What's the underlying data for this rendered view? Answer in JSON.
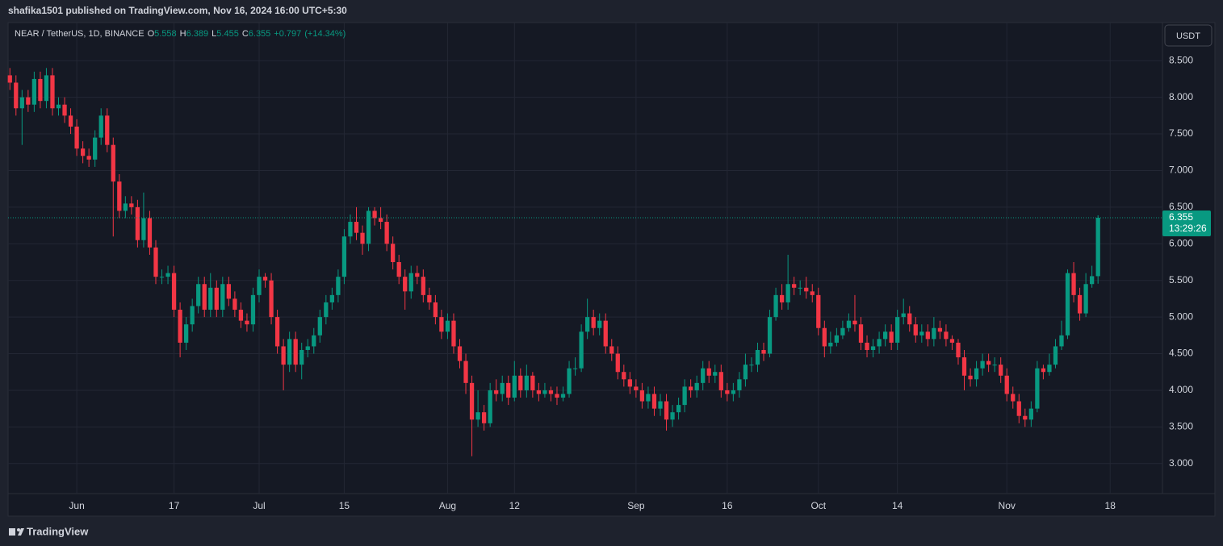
{
  "published": "shafika1501 published on TradingView.com, Nov 16, 2024 16:00 UTC+5:30",
  "footer": "TradingView",
  "currency": "USDT",
  "countdown": "13:29:26",
  "chart_data": {
    "type": "candlestick",
    "title": "NEAR / TetherUS, 1D, BINANCE",
    "ohlc_labels": [
      "O",
      "H",
      "L",
      "C"
    ],
    "change_label": "+0.797",
    "change_pct_label": "(+14.34%)",
    "up_color": "#089981",
    "down_color": "#f23645",
    "grid": true,
    "open": [
      8.3,
      8.2,
      7.85,
      8.0,
      7.9,
      8.25,
      7.95,
      8.3,
      7.85,
      7.9,
      7.75,
      7.6,
      7.3,
      7.2,
      7.15,
      7.45,
      7.75,
      7.35,
      6.85,
      6.45,
      6.55,
      6.5,
      6.05,
      6.35,
      5.95,
      5.55,
      5.55,
      5.6,
      5.1,
      4.65,
      4.9,
      5.15,
      5.45,
      5.1,
      5.4,
      5.1,
      5.45,
      5.25,
      5.1,
      4.95,
      4.9,
      5.3,
      5.55,
      5.5,
      5.0,
      4.6,
      4.35,
      4.7,
      4.35,
      4.55,
      4.6,
      4.75,
      5.0,
      5.2,
      5.3,
      5.55,
      6.1,
      6.3,
      6.15,
      6.0,
      6.45,
      6.35,
      6.3,
      6.0,
      5.75,
      5.55,
      5.35,
      5.6,
      5.55,
      5.3,
      5.2,
      5.0,
      4.8,
      4.95,
      4.6,
      4.4,
      4.1,
      3.6,
      3.7,
      3.55,
      4.0,
      3.95,
      4.1,
      3.9,
      4.2,
      4.0,
      4.2,
      4.0,
      3.95,
      4.0,
      3.95,
      3.9,
      3.95,
      4.3,
      4.3,
      4.8,
      5.0,
      4.85,
      4.95,
      4.6,
      4.5,
      4.25,
      4.15,
      4.05,
      4.0,
      3.85,
      3.95,
      3.75,
      3.85,
      3.6,
      3.7,
      3.8,
      4.05,
      4.0,
      4.1,
      4.3,
      4.2,
      4.25,
      4.0,
      3.95,
      4.0,
      4.15,
      4.35,
      4.35,
      4.55,
      4.5,
      5.0,
      5.3,
      5.2,
      5.45,
      5.4,
      5.4,
      5.35,
      5.3,
      4.85,
      4.6,
      4.65,
      4.75,
      4.85,
      4.95,
      4.9,
      4.65,
      4.55,
      4.6,
      4.7,
      4.8,
      4.65,
      5.0,
      5.05,
      4.9,
      4.75,
      4.8,
      4.7,
      4.85,
      4.8,
      4.7,
      4.65,
      4.45,
      4.2,
      4.15,
      4.3,
      4.4,
      4.35,
      4.35,
      4.2,
      3.95,
      3.85,
      3.65,
      3.6,
      3.75,
      4.3,
      4.25,
      4.35,
      4.6,
      4.75,
      5.6,
      5.3,
      5.05,
      5.45,
      5.558
    ],
    "high": [
      8.4,
      8.3,
      8.1,
      8.1,
      8.35,
      8.35,
      8.4,
      8.4,
      8.0,
      8.0,
      7.85,
      7.7,
      7.4,
      7.3,
      7.55,
      7.85,
      7.85,
      7.45,
      6.95,
      6.65,
      6.65,
      6.6,
      6.7,
      6.45,
      6.05,
      5.65,
      5.7,
      5.7,
      5.2,
      5.0,
      5.25,
      5.55,
      5.55,
      5.6,
      5.5,
      5.55,
      5.55,
      5.35,
      5.2,
      5.05,
      5.4,
      5.65,
      5.6,
      5.6,
      5.1,
      4.7,
      4.8,
      4.8,
      4.65,
      4.7,
      4.85,
      5.1,
      5.3,
      5.4,
      5.65,
      6.2,
      6.4,
      6.5,
      6.25,
      6.5,
      6.5,
      6.5,
      6.4,
      6.1,
      5.85,
      5.65,
      5.7,
      5.7,
      5.65,
      5.4,
      5.3,
      5.1,
      5.05,
      5.05,
      4.7,
      4.5,
      4.2,
      4.0,
      3.8,
      4.1,
      4.15,
      4.2,
      4.2,
      4.4,
      4.3,
      4.35,
      4.25,
      4.1,
      4.1,
      4.05,
      4.05,
      4.05,
      4.4,
      4.45,
      4.9,
      5.25,
      5.1,
      5.05,
      5.05,
      4.7,
      4.6,
      4.35,
      4.25,
      4.15,
      4.1,
      4.05,
      4.05,
      3.95,
      3.95,
      3.8,
      3.9,
      4.15,
      4.15,
      4.2,
      4.4,
      4.4,
      4.35,
      4.35,
      4.1,
      4.1,
      4.25,
      4.5,
      4.45,
      4.65,
      4.65,
      5.1,
      5.4,
      5.45,
      5.85,
      5.55,
      5.5,
      5.55,
      5.45,
      5.4,
      4.95,
      4.8,
      4.85,
      4.95,
      5.05,
      5.3,
      5.0,
      4.75,
      4.7,
      4.8,
      4.9,
      4.9,
      5.1,
      5.25,
      5.15,
      5.0,
      4.9,
      4.9,
      5.0,
      4.95,
      4.9,
      4.75,
      4.7,
      4.55,
      4.3,
      4.4,
      4.5,
      4.5,
      4.45,
      4.45,
      4.3,
      4.05,
      3.95,
      3.75,
      3.85,
      4.4,
      4.35,
      4.5,
      4.7,
      4.95,
      5.65,
      5.75,
      5.4,
      5.6,
      5.7,
      6.389
    ],
    "low": [
      8.1,
      7.75,
      7.35,
      7.8,
      7.8,
      7.85,
      7.85,
      7.75,
      7.75,
      7.65,
      7.5,
      7.2,
      7.1,
      7.05,
      7.05,
      7.35,
      7.25,
      6.1,
      6.35,
      6.35,
      6.4,
      5.95,
      5.95,
      5.85,
      5.45,
      5.45,
      5.45,
      5.0,
      4.45,
      4.55,
      4.8,
      5.05,
      5.0,
      5.0,
      5.0,
      5.0,
      5.15,
      5.0,
      4.85,
      4.8,
      4.8,
      5.2,
      5.4,
      4.9,
      4.5,
      4.0,
      4.25,
      4.25,
      4.15,
      4.45,
      4.5,
      4.65,
      4.9,
      5.1,
      5.2,
      5.45,
      6.0,
      6.05,
      5.85,
      5.9,
      6.25,
      6.2,
      5.9,
      5.65,
      5.45,
      5.1,
      5.25,
      5.45,
      5.2,
      5.1,
      4.9,
      4.7,
      4.7,
      4.5,
      4.3,
      3.95,
      3.1,
      3.5,
      3.45,
      3.5,
      3.85,
      3.85,
      3.8,
      3.85,
      3.9,
      3.9,
      3.9,
      3.85,
      3.9,
      3.85,
      3.8,
      3.85,
      3.9,
      4.2,
      4.25,
      4.7,
      4.75,
      4.75,
      4.5,
      4.4,
      4.15,
      4.05,
      3.95,
      3.9,
      3.75,
      3.75,
      3.65,
      3.65,
      3.45,
      3.5,
      3.6,
      3.7,
      3.9,
      3.9,
      4.0,
      4.1,
      4.1,
      3.9,
      3.85,
      3.85,
      3.9,
      4.05,
      4.25,
      4.25,
      4.4,
      4.45,
      4.95,
      5.1,
      5.1,
      5.3,
      5.3,
      5.25,
      5.2,
      4.75,
      4.45,
      4.5,
      4.6,
      4.7,
      4.8,
      4.8,
      4.55,
      4.45,
      4.45,
      4.5,
      4.6,
      4.55,
      4.55,
      4.9,
      4.8,
      4.65,
      4.65,
      4.6,
      4.6,
      4.7,
      4.6,
      4.55,
      4.35,
      4.0,
      4.05,
      4.05,
      4.2,
      4.25,
      4.25,
      4.1,
      3.85,
      3.75,
      3.55,
      3.5,
      3.5,
      3.7,
      4.15,
      4.2,
      4.3,
      4.55,
      4.7,
      5.2,
      4.95,
      5.0,
      5.4,
      5.455
    ],
    "close": [
      8.2,
      7.85,
      8.0,
      7.9,
      8.25,
      7.95,
      8.3,
      7.85,
      7.9,
      7.75,
      7.6,
      7.3,
      7.2,
      7.15,
      7.45,
      7.75,
      7.35,
      6.85,
      6.45,
      6.55,
      6.5,
      6.05,
      6.35,
      5.95,
      5.55,
      5.55,
      5.6,
      5.1,
      4.65,
      4.9,
      5.15,
      5.45,
      5.1,
      5.4,
      5.1,
      5.45,
      5.25,
      5.1,
      4.95,
      4.9,
      5.3,
      5.55,
      5.5,
      5.0,
      4.6,
      4.35,
      4.7,
      4.35,
      4.55,
      4.6,
      4.75,
      5.0,
      5.2,
      5.3,
      5.55,
      6.1,
      6.3,
      6.15,
      6.0,
      6.45,
      6.35,
      6.3,
      6.0,
      5.75,
      5.55,
      5.35,
      5.6,
      5.55,
      5.3,
      5.2,
      5.0,
      4.8,
      4.95,
      4.6,
      4.4,
      4.1,
      3.6,
      3.7,
      3.55,
      4.0,
      3.95,
      4.1,
      3.9,
      4.2,
      4.0,
      4.2,
      4.0,
      3.95,
      4.0,
      3.95,
      3.9,
      3.95,
      4.3,
      4.3,
      4.8,
      5.0,
      4.85,
      4.95,
      4.6,
      4.5,
      4.25,
      4.15,
      4.05,
      4.0,
      3.85,
      3.95,
      3.75,
      3.85,
      3.6,
      3.7,
      3.8,
      4.05,
      4.0,
      4.1,
      4.3,
      4.2,
      4.25,
      4.0,
      3.95,
      4.0,
      4.15,
      4.35,
      4.35,
      4.55,
      4.5,
      5.0,
      5.3,
      5.2,
      5.45,
      5.4,
      5.4,
      5.35,
      5.3,
      4.85,
      4.6,
      4.65,
      4.75,
      4.85,
      4.95,
      4.9,
      4.65,
      4.55,
      4.6,
      4.7,
      4.8,
      4.65,
      5.0,
      5.05,
      4.9,
      4.75,
      4.8,
      4.7,
      4.85,
      4.8,
      4.7,
      4.65,
      4.45,
      4.2,
      4.15,
      4.3,
      4.4,
      4.35,
      4.35,
      4.2,
      3.95,
      3.85,
      3.65,
      3.6,
      3.75,
      4.3,
      4.25,
      4.35,
      4.6,
      4.75,
      5.6,
      5.3,
      5.05,
      5.45,
      5.558,
      6.355
    ],
    "xlim": [
      -0.3,
      189.6
    ],
    "xticks": [
      {
        "value": 11,
        "label": "Jun"
      },
      {
        "value": 27,
        "label": "17"
      },
      {
        "value": 41,
        "label": "Jul"
      },
      {
        "value": 55,
        "label": "15"
      },
      {
        "value": 72,
        "label": "Aug"
      },
      {
        "value": 83,
        "label": "12"
      },
      {
        "value": 103,
        "label": "Sep"
      },
      {
        "value": 118,
        "label": "16"
      },
      {
        "value": 133,
        "label": "Oct"
      },
      {
        "value": 146,
        "label": "14"
      },
      {
        "value": 164,
        "label": "Nov"
      },
      {
        "value": 181,
        "label": "18"
      }
    ],
    "ylim": [
      2.59,
      9.02
    ],
    "yticks": [
      {
        "value": 3,
        "label": "3.000"
      },
      {
        "value": 3.5,
        "label": "3.500"
      },
      {
        "value": 4,
        "label": "4.000"
      },
      {
        "value": 4.5,
        "label": "4.500"
      },
      {
        "value": 5,
        "label": "5.000"
      },
      {
        "value": 5.5,
        "label": "5.500"
      },
      {
        "value": 6,
        "label": "6.000"
      },
      {
        "value": 6.5,
        "label": "6.500"
      },
      {
        "value": 7,
        "label": "7.000"
      },
      {
        "value": 7.5,
        "label": "7.500"
      },
      {
        "value": 8,
        "label": "8.000"
      },
      {
        "value": 8.5,
        "label": "8.500"
      }
    ]
  }
}
